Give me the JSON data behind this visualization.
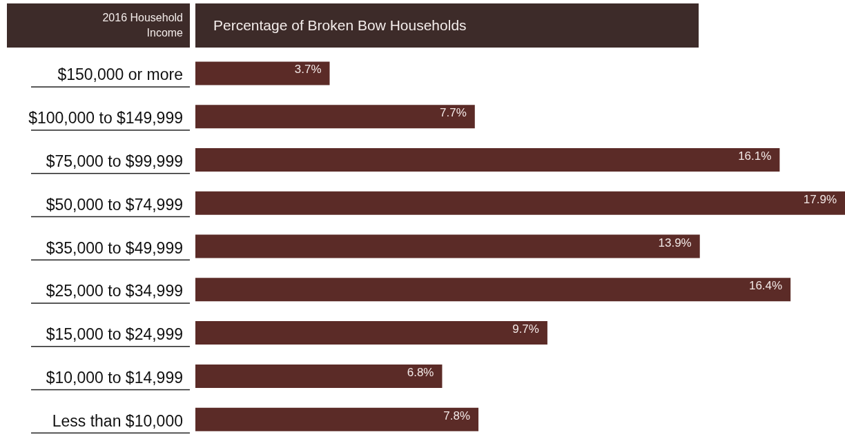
{
  "chart_data": {
    "type": "bar",
    "orientation": "horizontal",
    "title": "Percentage of Broken Bow Households",
    "ylabel": "2016 Household Income",
    "categories": [
      "$150,000 or more",
      "$100,000 to $149,999",
      "$75,000 to $99,999",
      "$50,000 to $74,999",
      "$35,000 to $49,999",
      "$25,000 to $34,999",
      "$15,000 to $24,999",
      "$10,000 to $14,999",
      "Less than $10,000"
    ],
    "values": [
      3.7,
      7.7,
      16.1,
      17.9,
      13.9,
      16.4,
      9.7,
      6.8,
      7.8
    ],
    "value_labels": [
      "3.7%",
      "7.7%",
      "16.1%",
      "17.9%",
      "13.9%",
      "16.4%",
      "9.7%",
      "6.8%",
      "7.8%"
    ],
    "color": "#5b2b27"
  }
}
